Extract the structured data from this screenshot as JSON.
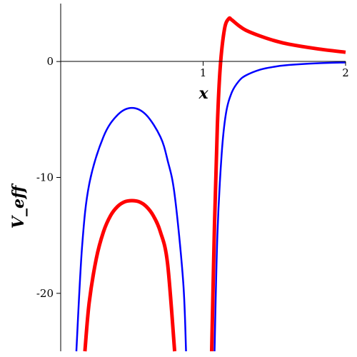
{
  "chart_data": {
    "type": "line",
    "xlabel": "x",
    "ylabel": "V_eff",
    "xlim": [
      0,
      2
    ],
    "ylim": [
      -25,
      5
    ],
    "xticks": [
      1,
      2
    ],
    "yticks": [
      0,
      -10,
      -20
    ],
    "grid": false,
    "legend": "none",
    "series": [
      {
        "color": "#0000ff",
        "branches": [
          {
            "x": [
              0.11,
              0.15,
              0.2,
              0.3,
              0.4,
              0.5,
              0.6,
              0.7,
              0.75,
              0.8,
              0.86,
              0.88
            ],
            "y": [
              -25,
              -16,
              -10.6,
              -6.5,
              -4.6,
              -4.0,
              -4.6,
              -6.5,
              -8.5,
              -11.5,
              -19,
              -25
            ]
          },
          {
            "x": [
              1.08,
              1.1,
              1.13,
              1.16,
              1.2,
              1.25,
              1.3,
              1.4,
              1.5,
              1.6,
              1.8,
              2.0
            ],
            "y": [
              -25,
              -15,
              -8,
              -4.5,
              -2.7,
              -1.7,
              -1.2,
              -0.7,
              -0.45,
              -0.3,
              -0.15,
              -0.08
            ]
          }
        ]
      },
      {
        "color": "#ff0000",
        "branches": [
          {
            "x": [
              0.17,
              0.2,
              0.25,
              0.3,
              0.35,
              0.4,
              0.45,
              0.5,
              0.55,
              0.6,
              0.65,
              0.7,
              0.75,
              0.8
            ],
            "y": [
              -25,
              -20.8,
              -17,
              -14.7,
              -13.3,
              -12.5,
              -12.1,
              -12.0,
              -12.1,
              -12.5,
              -13.3,
              -14.7,
              -17.4,
              -25
            ]
          },
          {
            "x": [
              1.06,
              1.08,
              1.1,
              1.12,
              1.15,
              1.18,
              1.2,
              1.25,
              1.3,
              1.4,
              1.5,
              1.6,
              1.8,
              2.0
            ],
            "y": [
              -25,
              -14,
              -5.5,
              -0.5,
              2.8,
              3.7,
              3.6,
              3.1,
              2.7,
              2.2,
              1.8,
              1.5,
              1.1,
              0.8
            ]
          }
        ]
      }
    ]
  }
}
